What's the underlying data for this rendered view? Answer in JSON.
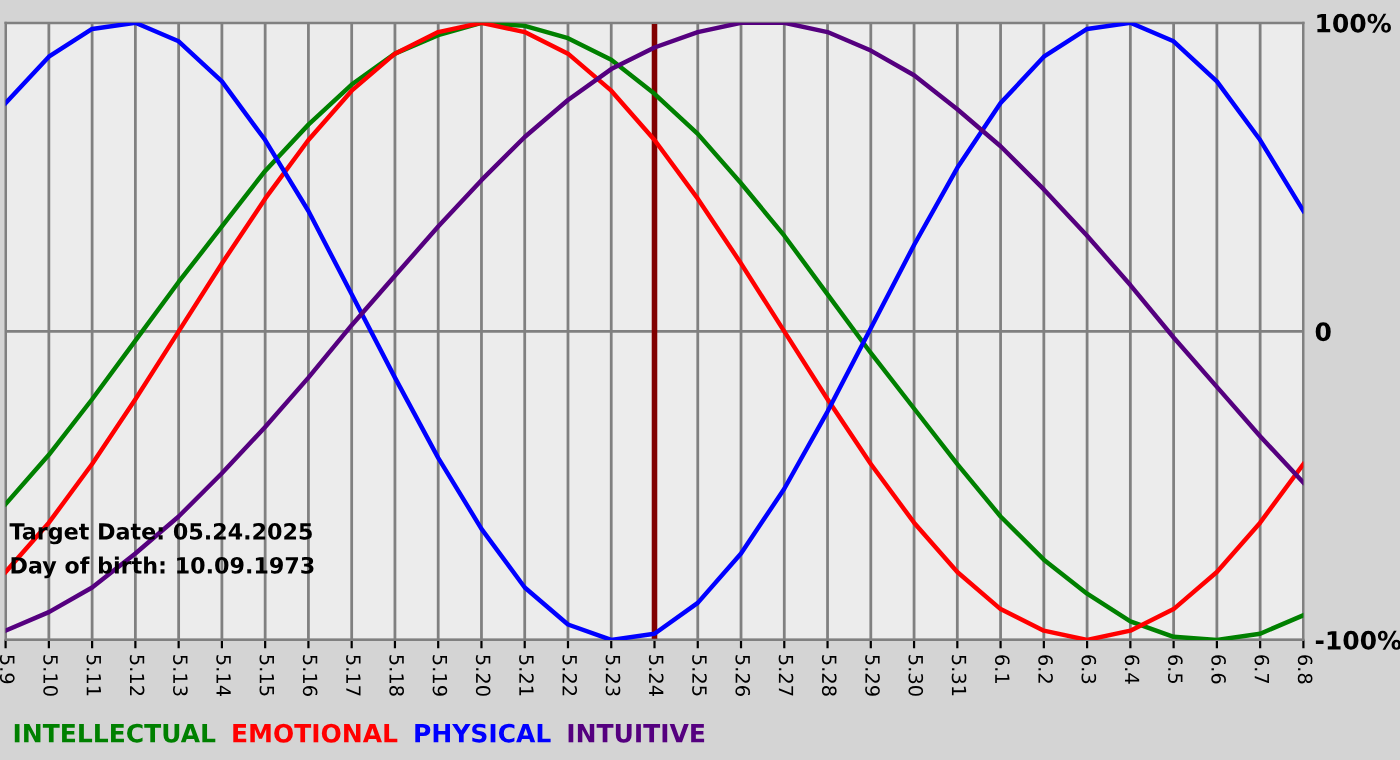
{
  "chart_data": {
    "type": "line",
    "categories": [
      "5.9",
      "5.10",
      "5.11",
      "5.12",
      "5.13",
      "5.14",
      "5.15",
      "5.16",
      "5.17",
      "5.18",
      "5.19",
      "5.20",
      "5.21",
      "5.22",
      "5.23",
      "5.24",
      "5.25",
      "5.26",
      "5.27",
      "5.28",
      "5.29",
      "5.30",
      "5.31",
      "6.1",
      "6.2",
      "6.3",
      "6.4",
      "6.5",
      "6.6",
      "6.7",
      "6.8"
    ],
    "series": [
      {
        "name": "INTELLECTUAL",
        "color": "#008000",
        "values": [
          -56,
          -40,
          -22,
          -3,
          16,
          34,
          52,
          67,
          80,
          90,
          96,
          100,
          99,
          95,
          88,
          77,
          64,
          48,
          31,
          12,
          -7,
          -25,
          -43,
          -60,
          -74,
          -85,
          -94,
          -99,
          -100,
          -98,
          -92
        ]
      },
      {
        "name": "EMOTIONAL",
        "color": "#ff0000",
        "values": [
          -78,
          -62,
          -43,
          -22,
          0,
          22,
          43,
          62,
          78,
          90,
          97,
          100,
          97,
          90,
          78,
          62,
          43,
          22,
          0,
          -22,
          -43,
          -62,
          -78,
          -90,
          -97,
          -100,
          -97,
          -90,
          -78,
          -62,
          -43
        ]
      },
      {
        "name": "PHYSICAL",
        "color": "#0000ff",
        "values": [
          74,
          89,
          98,
          100,
          94,
          81,
          62,
          39,
          12,
          -15,
          -41,
          -64,
          -83,
          -95,
          -100,
          -98,
          -88,
          -72,
          -51,
          -26,
          1,
          28,
          53,
          74,
          89,
          98,
          100,
          94,
          81,
          62,
          39
        ]
      },
      {
        "name": "INTUITIVE",
        "color": "#55007f",
        "values": [
          -97,
          -91,
          -83,
          -72,
          -60,
          -46,
          -31,
          -15,
          2,
          18,
          34,
          49,
          63,
          75,
          85,
          92,
          97,
          100,
          100,
          97,
          91,
          83,
          72,
          60,
          46,
          31,
          15,
          -2,
          -18,
          -34,
          -49
        ]
      }
    ],
    "ylim": [
      -100,
      100
    ],
    "yticks": [
      {
        "value": 100,
        "label": "100%"
      },
      0,
      {
        "value": -100,
        "label": "-100%"
      }
    ],
    "grid": true,
    "legend": "bottom",
    "marker": "none",
    "line_style": "solid",
    "ref_lines": [
      {
        "axis": "x",
        "value": "5.24",
        "color": "#800000"
      }
    ],
    "annotations": [
      "Target Date: 05.24.2025",
      "Day of birth: 10.09.1973"
    ]
  }
}
